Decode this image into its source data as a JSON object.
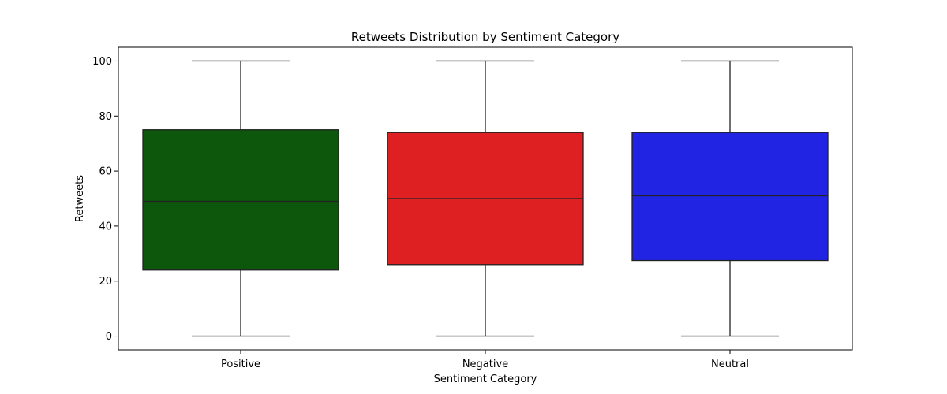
{
  "chart_data": {
    "type": "box",
    "title": "Retweets Distribution by Sentiment Category",
    "xlabel": "Sentiment Category",
    "ylabel": "Retweets",
    "ylim": [
      -5,
      105
    ],
    "yticks": [
      0,
      20,
      40,
      60,
      80,
      100
    ],
    "grid": false,
    "categories": [
      "Positive",
      "Negative",
      "Neutral"
    ],
    "boxes": [
      {
        "category": "Positive",
        "min": 0,
        "q1": 24,
        "median": 49,
        "q3": 75,
        "max": 100,
        "color": "#0d570d"
      },
      {
        "category": "Negative",
        "min": 0,
        "q1": 26,
        "median": 50,
        "q3": 74,
        "max": 100,
        "color": "#df2022"
      },
      {
        "category": "Neutral",
        "min": 0,
        "q1": 27.5,
        "median": 51,
        "q3": 74,
        "max": 100,
        "color": "#2124e2"
      }
    ]
  }
}
